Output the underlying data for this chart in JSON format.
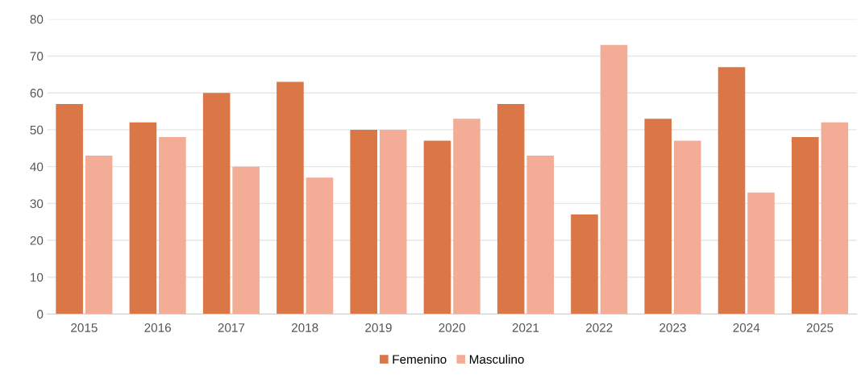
{
  "chart_data": {
    "type": "bar",
    "categories": [
      "2015",
      "2016",
      "2017",
      "2018",
      "2019",
      "2020",
      "2021",
      "2022",
      "2023",
      "2024",
      "2025"
    ],
    "series": [
      {
        "name": "Femenino",
        "color": "#db7647",
        "values": [
          57,
          52,
          60,
          63,
          50,
          47,
          57,
          27,
          53,
          67,
          48
        ]
      },
      {
        "name": "Masculino",
        "color": "#f3ad96",
        "values": [
          43,
          48,
          40,
          37,
          50,
          53,
          43,
          73,
          47,
          33,
          52
        ]
      }
    ],
    "ylim": [
      0,
      80
    ],
    "yticks": [
      0,
      10,
      20,
      30,
      40,
      50,
      60,
      70,
      80
    ],
    "grid": "y",
    "legend": "bottom"
  }
}
